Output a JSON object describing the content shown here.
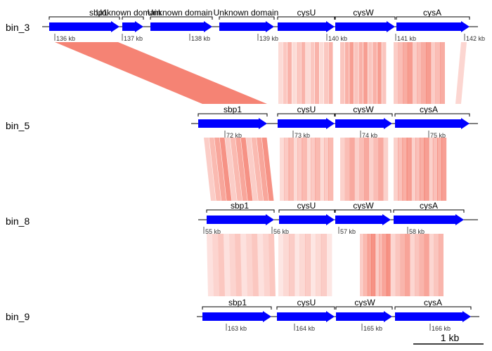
{
  "gene_color": "#0000ff",
  "link_color": "#f25a46",
  "tracks": [
    {
      "name": "bin_3",
      "genes": [
        {
          "label": "sbp1"
        },
        {
          "label": "Unknown domain"
        },
        {
          "label": "Unknown domain"
        },
        {
          "label": "Unknown domain"
        },
        {
          "label": "cysU"
        },
        {
          "label": "cysW"
        },
        {
          "label": "cysA"
        }
      ],
      "ticks": [
        "136 kb",
        "137 kb",
        "138 kb",
        "139 kb",
        "140 kb",
        "141 kb",
        "142 kb"
      ]
    },
    {
      "name": "bin_5",
      "genes": [
        {
          "label": "sbp1"
        },
        {
          "label": "cysU"
        },
        {
          "label": "cysW"
        },
        {
          "label": "cysA"
        }
      ],
      "ticks": [
        "72 kb",
        "73 kb",
        "74 kb",
        "75 kb"
      ]
    },
    {
      "name": "bin_8",
      "genes": [
        {
          "label": "sbp1"
        },
        {
          "label": "cysU"
        },
        {
          "label": "cysW"
        },
        {
          "label": "cysA"
        }
      ],
      "ticks": [
        "55 kb",
        "56 kb",
        "57 kb",
        "58 kb"
      ]
    },
    {
      "name": "bin_9",
      "genes": [
        {
          "label": "sbp1"
        },
        {
          "label": "cysU"
        },
        {
          "label": "cysW"
        },
        {
          "label": "cysA"
        }
      ],
      "ticks": [
        "163 kb",
        "164 kb",
        "165 kb",
        "166 kb"
      ]
    }
  ],
  "scale_bar": {
    "label": "1 kb"
  }
}
